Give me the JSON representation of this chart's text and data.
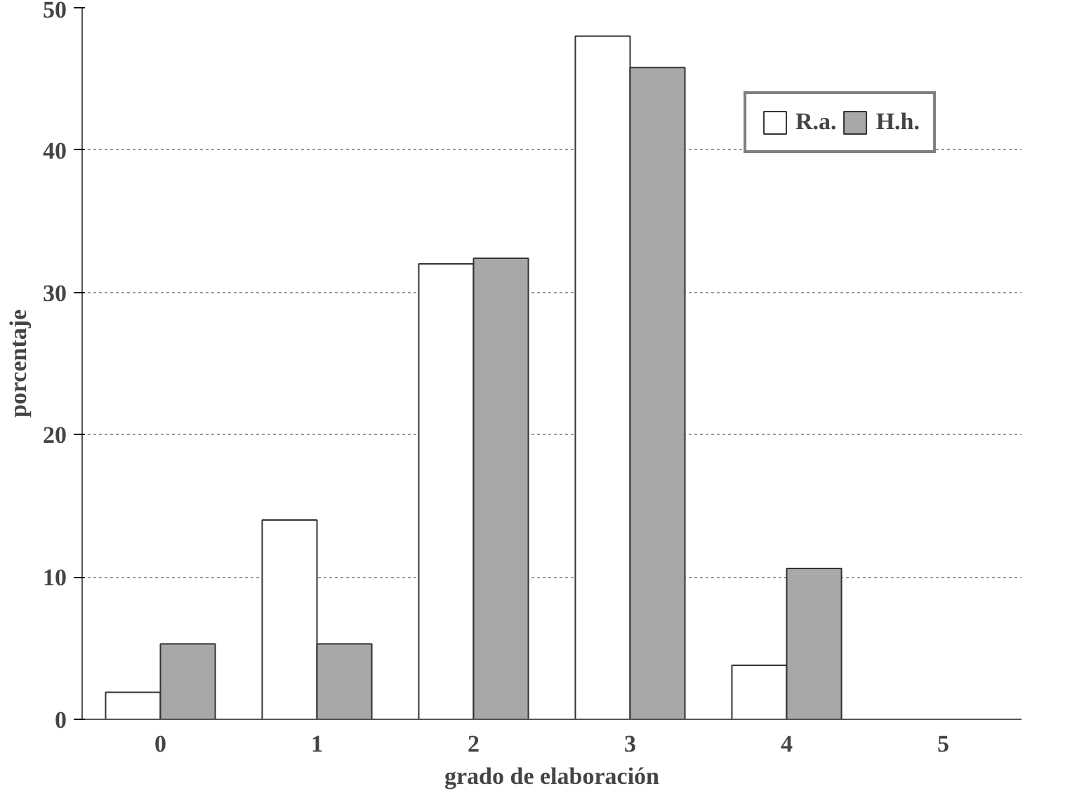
{
  "chart_data": {
    "type": "bar",
    "xlabel": "grado de elaboración",
    "ylabel": "porcentaje",
    "categories": [
      "0",
      "1",
      "2",
      "3",
      "4",
      "5"
    ],
    "series": [
      {
        "name": "R.a.",
        "color": "#ffffff",
        "values": [
          1.9,
          14.0,
          32.0,
          48.0,
          3.8,
          null
        ]
      },
      {
        "name": "H.h.",
        "color": "#a8a8a8",
        "values": [
          5.3,
          5.3,
          32.4,
          45.8,
          10.6,
          null
        ]
      }
    ],
    "ylim": [
      0,
      50
    ],
    "yticks": [
      0,
      10,
      20,
      30,
      40,
      50
    ],
    "grid": "y",
    "legend": "top right"
  }
}
